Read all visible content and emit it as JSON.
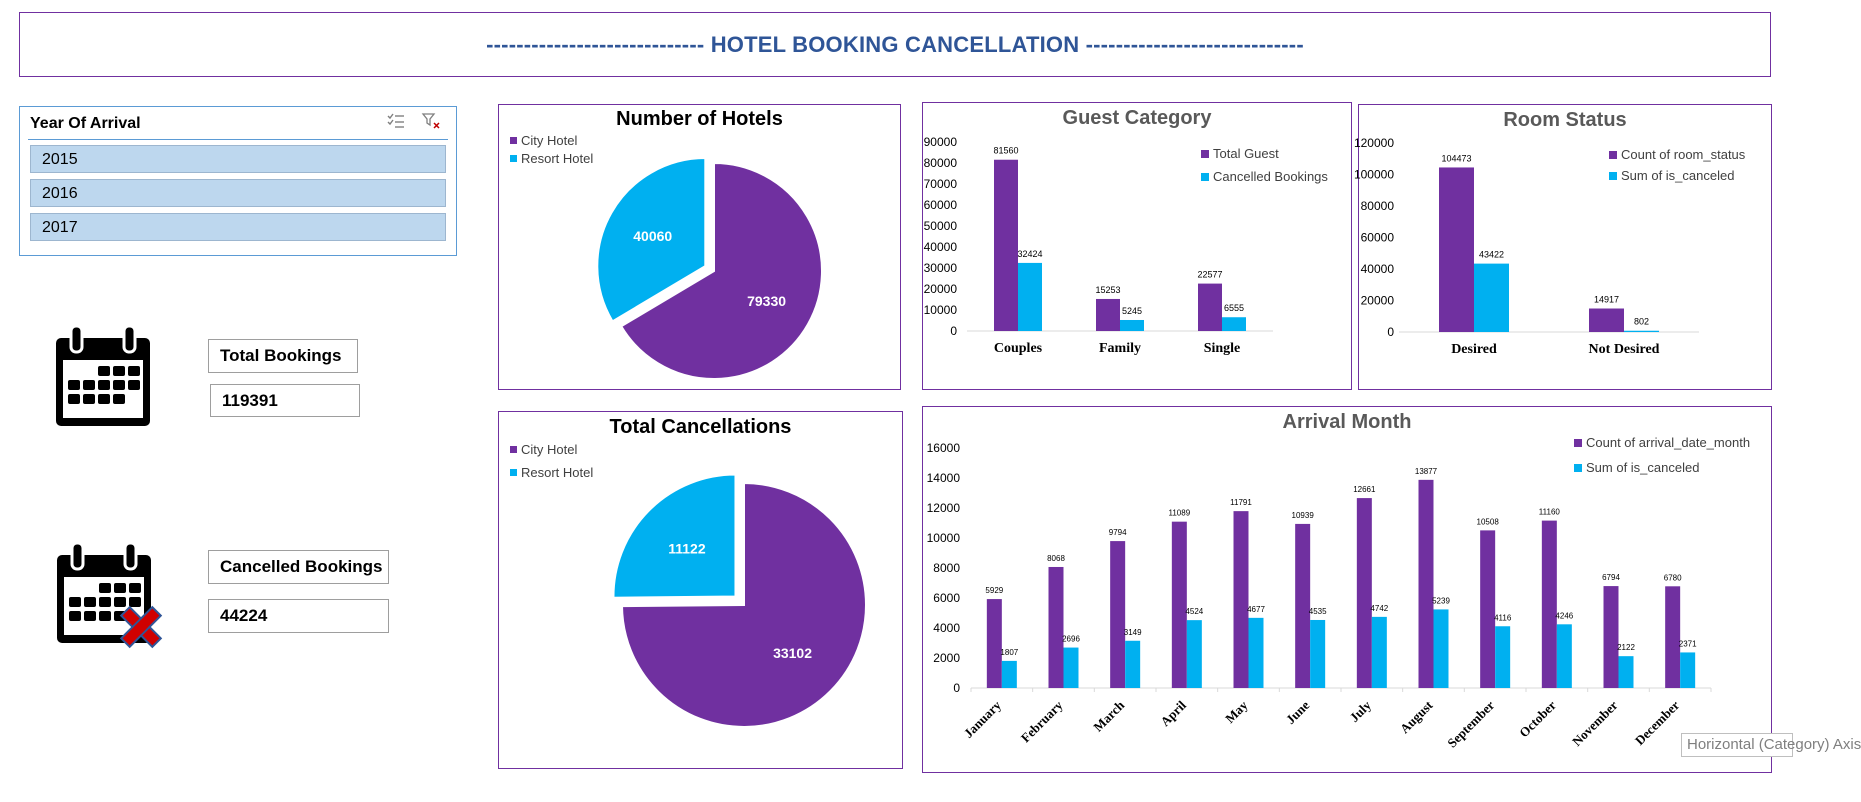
{
  "title": "----------------------------- HOTEL BOOKING CANCELLATION -----------------------------",
  "slicer": {
    "header": "Year Of Arrival",
    "icons": [
      "multi-select-icon",
      "clear-filter-icon"
    ],
    "items": [
      "2015",
      "2016",
      "2017"
    ]
  },
  "kpis": {
    "total_label": "Total Bookings",
    "total_value": "119391",
    "cancelled_label": "Cancelled Bookings",
    "cancelled_value": "44224"
  },
  "tooltip": "Horizontal (Category) Axis",
  "colors": {
    "purple": "#7030a0",
    "cyan": "#00b0f0",
    "title_blue": "#2f5597"
  },
  "chart_data": [
    {
      "id": "hotels",
      "type": "pie",
      "title": "Number of Hotels",
      "legend": "top-left",
      "labels": [
        "City Hotel",
        "Resort Hotel"
      ],
      "values": [
        79330,
        40060
      ],
      "colors": [
        "#7030a0",
        "#00b0f0"
      ]
    },
    {
      "id": "cancellations",
      "type": "pie",
      "title": "Total Cancellations",
      "legend": "top-left",
      "labels": [
        "City Hotel",
        "Resort Hotel"
      ],
      "values": [
        33102,
        11122
      ],
      "colors": [
        "#7030a0",
        "#00b0f0"
      ]
    },
    {
      "id": "guest",
      "type": "bar",
      "title": "Guest Category",
      "categories": [
        "Couples",
        "Family",
        "Single"
      ],
      "series": [
        {
          "name": "Total Guest",
          "values": [
            81560,
            15253,
            22577
          ],
          "color": "#7030a0"
        },
        {
          "name": "Cancelled Bookings",
          "values": [
            32424,
            5245,
            6555
          ],
          "color": "#00b0f0"
        }
      ],
      "ylim": [
        0,
        90000
      ],
      "yticks": [
        "0",
        "10000",
        "20000",
        "30000",
        "40000",
        "50000",
        "60000",
        "70000",
        "80000",
        "90000"
      ],
      "legend": "top-right",
      "grid": false
    },
    {
      "id": "room",
      "type": "bar",
      "title": "Room Status",
      "categories": [
        "Desired",
        "Not Desired"
      ],
      "series": [
        {
          "name": "Count of room_status",
          "values": [
            104473,
            14917
          ],
          "color": "#7030a0"
        },
        {
          "name": "Sum of is_canceled",
          "values": [
            43422,
            802
          ],
          "color": "#00b0f0"
        }
      ],
      "ylim": [
        0,
        120000
      ],
      "yticks": [
        "0",
        "20000",
        "40000",
        "60000",
        "80000",
        "100000",
        "120000"
      ],
      "legend": "top-right",
      "grid": false
    },
    {
      "id": "month",
      "type": "bar",
      "title": "Arrival Month",
      "categories": [
        "January",
        "February",
        "March",
        "April",
        "May",
        "June",
        "July",
        "August",
        "September",
        "October",
        "November",
        "December"
      ],
      "series": [
        {
          "name": "Count of arrival_date_month",
          "values": [
            5929,
            8068,
            9794,
            11089,
            11791,
            10939,
            12661,
            13877,
            10508,
            11160,
            6794,
            6780
          ],
          "color": "#7030a0"
        },
        {
          "name": "Sum of is_canceled",
          "values": [
            1807,
            2696,
            3149,
            4524,
            4677,
            4535,
            4742,
            5239,
            4116,
            4246,
            2122,
            2371
          ],
          "color": "#00b0f0"
        }
      ],
      "ylim": [
        0,
        16000
      ],
      "yticks": [
        "0",
        "2000",
        "4000",
        "6000",
        "8000",
        "10000",
        "12000",
        "14000",
        "16000"
      ],
      "legend": "top-right",
      "grid": false
    }
  ]
}
